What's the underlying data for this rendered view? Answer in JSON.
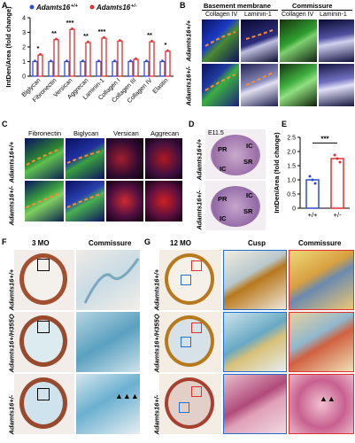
{
  "panel_labels": {
    "A": "A",
    "B": "B",
    "C": "C",
    "D": "D",
    "E": "E",
    "F": "F",
    "G": "G"
  },
  "chart_data": [
    {
      "type": "bar",
      "ylabel": "IntDen/Area (fold change)",
      "ylim": [
        0,
        4
      ],
      "yticks": [
        "0",
        "1",
        "2",
        "3",
        "4"
      ],
      "categories": [
        "Biglycan",
        "Fibronectin",
        "Versican",
        "Aggrecan",
        "Laminin-1",
        "Collagen I",
        "Collagen III",
        "Collagen IV",
        "Elastin"
      ],
      "series": [
        {
          "name": "Adamts16+/+",
          "color": "#2f4bd3",
          "values": [
            1,
            1,
            1,
            1,
            1,
            1,
            1,
            1,
            1
          ]
        },
        {
          "name": "Adamts16+/-",
          "color": "#e03030",
          "values": [
            1.45,
            2.5,
            3.2,
            2.3,
            2.6,
            2.4,
            1.15,
            2.35,
            1.7
          ]
        }
      ],
      "significance": [
        "*",
        "**",
        "***",
        "**",
        "***",
        "",
        "",
        "**",
        "*"
      ],
      "legend": {
        "wt": "Adamts16",
        "wt_sup": "+/+",
        "het": "Adamts16",
        "het_sup": "+/-"
      }
    },
    {
      "type": "bar",
      "ylabel": "IntDen/Area (fold change)",
      "ylim": [
        0,
        2.5
      ],
      "yticks": [
        "0",
        "0.5",
        "1.0",
        "1.5",
        "2.0",
        "2.5"
      ],
      "categories": [
        "+/+",
        "+/-"
      ],
      "values": [
        1.0,
        1.75
      ],
      "colors": [
        "#2f4bd3",
        "#e03030"
      ],
      "significance": "***"
    }
  ],
  "panelB": {
    "group1": "Basement membrane",
    "group2": "Commissure",
    "cols": [
      "Collagen IV",
      "Laminin-1",
      "Collagen IV",
      "Laminin-1"
    ],
    "rows": [
      "Adamts16+/+",
      "Adamts16+/-"
    ]
  },
  "panelC": {
    "cols": [
      "Fibronectin",
      "Biglycan",
      "Versican",
      "Aggrecan"
    ],
    "rows": [
      "Adamts16+/+",
      "Adamts16+/-"
    ]
  },
  "panelD": {
    "stage": "E11.5",
    "rows": [
      "Adamts16+/+",
      "Adamts16+/-"
    ],
    "labels": [
      "PR",
      "IC",
      "SR",
      "IC"
    ]
  },
  "panelF": {
    "title": "3 MO",
    "col2": "Commissure",
    "rows": [
      "Adamts16+/+",
      "Adamts16+/H355Q",
      "Adamts16+/-"
    ]
  },
  "panelG": {
    "title": "12 MO",
    "cols": [
      "Cusp",
      "Commissure"
    ],
    "rows": [
      "Adamts16+/+",
      "Adamts16+/H355Q",
      "Adamts16+/-"
    ]
  }
}
